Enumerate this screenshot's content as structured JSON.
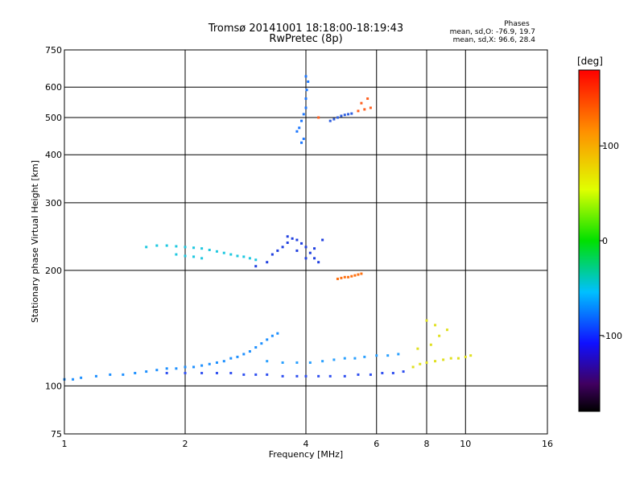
{
  "chart_data": {
    "type": "scatter",
    "title": "Tromsø 20141001 18:18:00-18:19:43",
    "subtitle": "RwPretec (8p)",
    "xlabel": "Frequency [MHz]",
    "ylabel": "Stationary phase Virtual Height [km]",
    "x_scale": "log",
    "y_scale": "log",
    "xlim": [
      1,
      16
    ],
    "ylim": [
      75,
      750
    ],
    "x_ticks": [
      1,
      2,
      4,
      6,
      8,
      10,
      16
    ],
    "y_ticks": [
      75,
      100,
      200,
      300,
      400,
      500,
      600,
      750
    ],
    "x_grid": [
      2,
      4,
      6,
      8,
      10
    ],
    "y_grid": [
      100,
      200,
      300,
      400,
      500,
      600
    ],
    "grid": true,
    "phases_info": {
      "heading": "Phases",
      "o_mode": "mean, sd,O: -76.9, 19.7",
      "x_mode": "mean, sd,X: 96.6, 28.4"
    },
    "colorbar": {
      "label": "[deg]",
      "ticks": [
        100,
        0,
        -100
      ],
      "range": [
        -180,
        180
      ],
      "colormap": "rainbow",
      "placement": "right"
    },
    "series": [
      {
        "name": "",
        "color": "#1e90ff",
        "points": [
          [
            1.0,
            104
          ],
          [
            1.05,
            104
          ],
          [
            1.1,
            105
          ],
          [
            1.2,
            106
          ],
          [
            1.3,
            107
          ],
          [
            1.4,
            107
          ],
          [
            1.5,
            108
          ],
          [
            1.6,
            109
          ],
          [
            1.7,
            110
          ],
          [
            1.8,
            111
          ],
          [
            1.9,
            111
          ],
          [
            2.0,
            112
          ],
          [
            2.1,
            112
          ],
          [
            2.2,
            113
          ],
          [
            2.3,
            114
          ],
          [
            2.4,
            115
          ],
          [
            2.5,
            116
          ],
          [
            2.6,
            118
          ],
          [
            2.7,
            119
          ],
          [
            2.8,
            121
          ],
          [
            2.9,
            123
          ],
          [
            3.0,
            126
          ],
          [
            3.1,
            129
          ],
          [
            3.2,
            132
          ],
          [
            3.3,
            135
          ],
          [
            3.4,
            137
          ]
        ]
      },
      {
        "name": "",
        "color": "#3050f0",
        "points": [
          [
            1.8,
            108
          ],
          [
            2.0,
            108
          ],
          [
            2.2,
            108
          ],
          [
            2.4,
            108
          ],
          [
            2.6,
            108
          ],
          [
            2.8,
            107
          ],
          [
            3.0,
            107
          ],
          [
            3.2,
            107
          ],
          [
            3.5,
            106
          ],
          [
            3.8,
            106
          ],
          [
            4.0,
            106
          ],
          [
            4.3,
            106
          ],
          [
            4.6,
            106
          ],
          [
            5.0,
            106
          ],
          [
            5.4,
            107
          ],
          [
            5.8,
            107
          ],
          [
            6.2,
            108
          ],
          [
            6.6,
            108
          ],
          [
            7.0,
            109
          ]
        ]
      },
      {
        "name": "",
        "color": "#2aa0ff",
        "points": [
          [
            3.2,
            116
          ],
          [
            3.5,
            115
          ],
          [
            3.8,
            115
          ],
          [
            4.1,
            115
          ],
          [
            4.4,
            116
          ],
          [
            4.7,
            117
          ],
          [
            5.0,
            118
          ],
          [
            5.3,
            118
          ],
          [
            5.6,
            119
          ],
          [
            6.0,
            120
          ],
          [
            6.4,
            120
          ],
          [
            6.8,
            121
          ]
        ]
      },
      {
        "name": "",
        "color": "#e0e020",
        "points": [
          [
            7.4,
            112
          ],
          [
            7.7,
            114
          ],
          [
            8.0,
            115
          ],
          [
            8.4,
            116
          ],
          [
            8.8,
            117
          ],
          [
            9.2,
            118
          ],
          [
            9.6,
            118
          ],
          [
            10.0,
            119
          ],
          [
            10.3,
            120
          ],
          [
            7.6,
            125
          ],
          [
            8.2,
            128
          ],
          [
            8.6,
            135
          ],
          [
            9.0,
            140
          ],
          [
            8.0,
            148
          ],
          [
            8.4,
            144
          ]
        ]
      },
      {
        "name": "",
        "color": "#1ec8e0",
        "points": [
          [
            1.6,
            230
          ],
          [
            1.7,
            232
          ],
          [
            1.8,
            232
          ],
          [
            1.9,
            231
          ],
          [
            2.0,
            230
          ],
          [
            2.1,
            229
          ],
          [
            2.2,
            228
          ],
          [
            2.3,
            226
          ],
          [
            2.4,
            224
          ],
          [
            2.5,
            222
          ],
          [
            2.6,
            220
          ],
          [
            2.7,
            218
          ],
          [
            2.8,
            217
          ],
          [
            2.9,
            215
          ],
          [
            3.0,
            213
          ],
          [
            1.9,
            220
          ],
          [
            2.0,
            218
          ],
          [
            2.1,
            217
          ],
          [
            2.2,
            215
          ]
        ]
      },
      {
        "name": "",
        "color": "#2040e0",
        "points": [
          [
            3.0,
            205
          ],
          [
            3.2,
            210
          ],
          [
            3.3,
            220
          ],
          [
            3.4,
            225
          ],
          [
            3.5,
            230
          ],
          [
            3.6,
            236
          ],
          [
            3.7,
            242
          ],
          [
            3.8,
            240
          ],
          [
            3.9,
            235
          ],
          [
            4.0,
            230
          ],
          [
            4.1,
            222
          ],
          [
            4.2,
            215
          ],
          [
            4.3,
            210
          ],
          [
            3.6,
            245
          ],
          [
            3.8,
            225
          ],
          [
            4.0,
            215
          ],
          [
            4.2,
            228
          ],
          [
            4.4,
            240
          ]
        ]
      },
      {
        "name": "",
        "color": "#ff7010",
        "points": [
          [
            4.8,
            190
          ],
          [
            4.9,
            191
          ],
          [
            5.0,
            192
          ],
          [
            5.1,
            192
          ],
          [
            5.2,
            193
          ],
          [
            5.3,
            194
          ],
          [
            5.4,
            195
          ],
          [
            5.5,
            196
          ]
        ]
      },
      {
        "name": "",
        "color": "#1e78ff",
        "points": [
          [
            3.8,
            460
          ],
          [
            3.85,
            470
          ],
          [
            3.9,
            490
          ],
          [
            3.95,
            510
          ],
          [
            4.0,
            530
          ],
          [
            4.0,
            560
          ],
          [
            4.02,
            590
          ],
          [
            4.05,
            620
          ],
          [
            4.0,
            640
          ],
          [
            3.95,
            440
          ],
          [
            3.9,
            430
          ]
        ]
      },
      {
        "name": "",
        "color": "#3060e0",
        "points": [
          [
            4.6,
            490
          ],
          [
            4.7,
            495
          ],
          [
            4.8,
            500
          ],
          [
            4.9,
            505
          ],
          [
            5.0,
            508
          ],
          [
            5.1,
            510
          ],
          [
            5.2,
            512
          ]
        ]
      },
      {
        "name": "",
        "color": "#ff6020",
        "points": [
          [
            4.3,
            500
          ],
          [
            5.4,
            520
          ],
          [
            5.6,
            525
          ],
          [
            5.8,
            530
          ],
          [
            5.5,
            545
          ],
          [
            5.7,
            560
          ]
        ]
      }
    ]
  }
}
